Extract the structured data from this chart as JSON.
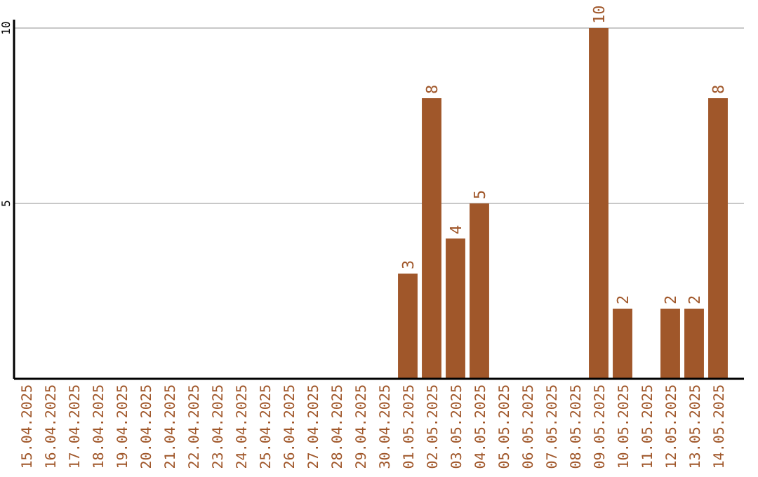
{
  "chart_data": {
    "type": "bar",
    "categories": [
      "15.04.2025",
      "16.04.2025",
      "17.04.2025",
      "18.04.2025",
      "19.04.2025",
      "20.04.2025",
      "21.04.2025",
      "22.04.2025",
      "23.04.2025",
      "24.04.2025",
      "25.04.2025",
      "26.04.2025",
      "27.04.2025",
      "28.04.2025",
      "29.04.2025",
      "30.04.2025",
      "01.05.2025",
      "02.05.2025",
      "03.05.2025",
      "04.05.2025",
      "05.05.2025",
      "06.05.2025",
      "07.05.2025",
      "08.05.2025",
      "09.05.2025",
      "10.05.2025",
      "11.05.2025",
      "12.05.2025",
      "13.05.2025",
      "14.05.2025"
    ],
    "values": [
      null,
      null,
      null,
      null,
      null,
      null,
      null,
      null,
      null,
      null,
      null,
      null,
      null,
      null,
      null,
      null,
      3,
      8,
      4,
      5,
      null,
      null,
      null,
      null,
      10,
      2,
      null,
      2,
      2,
      8
    ],
    "color": "#a0572a",
    "ylim": [
      0,
      10
    ],
    "yticks": [
      5,
      10
    ],
    "grid": "y",
    "data_labels": true
  }
}
